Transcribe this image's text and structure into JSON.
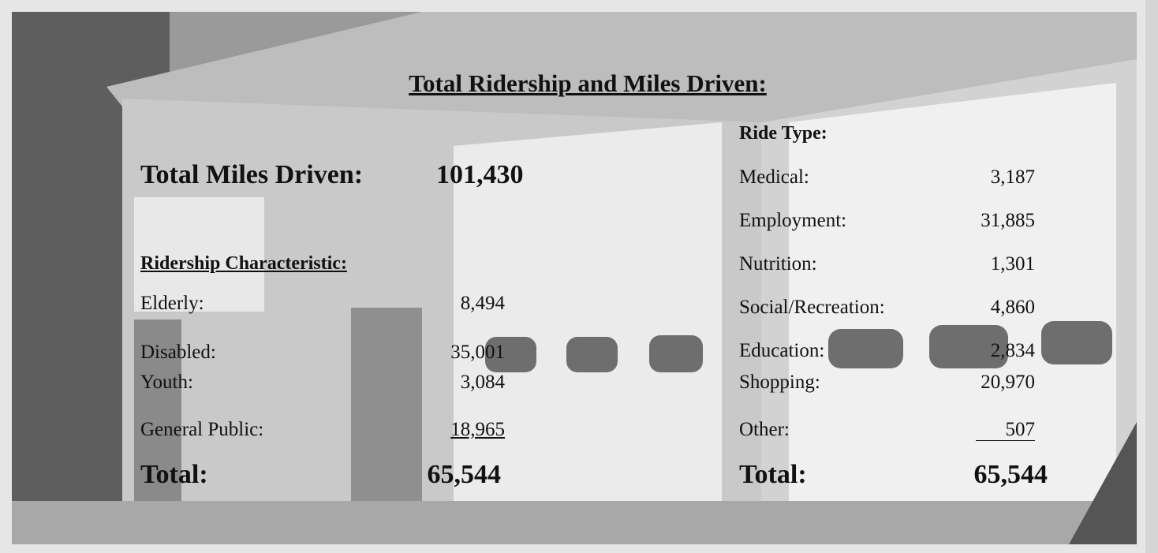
{
  "title": "Total Ridership and Miles Driven:",
  "total_miles": {
    "label": "Total Miles Driven:",
    "value": "101,430"
  },
  "ridership": {
    "heading": "Ridership Characteristic:",
    "rows": [
      [
        "Elderly:",
        "8,494"
      ],
      [
        "Disabled:",
        "35,001"
      ],
      [
        "Youth:",
        "3,084"
      ],
      [
        "General Public:",
        "18,965"
      ]
    ],
    "total": {
      "label": "Total:",
      "value": "65,544"
    }
  },
  "ride_type": {
    "heading": "Ride Type:",
    "rows": [
      [
        "Medical:",
        "3,187"
      ],
      [
        "Employment:",
        "31,885"
      ],
      [
        "Nutrition:",
        "1,301"
      ],
      [
        "Social/Recreation:",
        "4,860"
      ],
      [
        "Education:",
        "2,834"
      ],
      [
        "Shopping:",
        "20,970"
      ],
      [
        "Other:",
        "507"
      ]
    ],
    "total": {
      "label": "Total:",
      "value": "65,544"
    }
  }
}
